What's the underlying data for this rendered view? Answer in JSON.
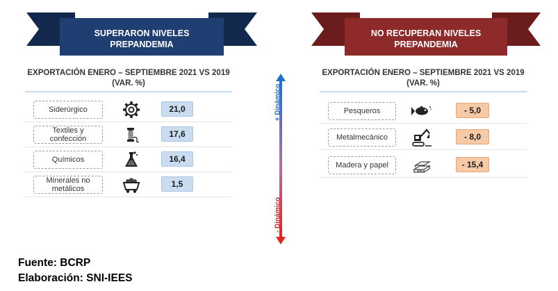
{
  "left": {
    "banner": {
      "line1": "SUPERARON NIVELES",
      "line2": "PREPANDEMIA",
      "color": "#1f3f73"
    },
    "title": {
      "line1": "EXPORTACIÓN ENERO – SEPTIEMBRE 2021 VS 2019",
      "line2": "(VAR. %)"
    },
    "items": [
      {
        "line1": "Siderúrgico",
        "line2": "",
        "value": "21,0",
        "icon": "gear-icon"
      },
      {
        "line1": "Textiles y",
        "line2": "confección",
        "value": "17,6",
        "icon": "thread-spool-icon"
      },
      {
        "line1": "Químicos",
        "line2": "",
        "value": "16,4",
        "icon": "flask-icon"
      },
      {
        "line1": "Minerales no",
        "line2": "metálicos",
        "value": "1,5",
        "icon": "mine-cart-icon"
      }
    ]
  },
  "right": {
    "banner": {
      "line1": "NO RECUPERAN NIVELES",
      "line2": "PREPANDEMIA",
      "color": "#8e2a2a"
    },
    "title": {
      "line1": "EXPORTACIÓN ENERO – SEPTIEMBRE 2021 VS 2019",
      "line2": "(VAR. %)"
    },
    "items": [
      {
        "line1": "Pesqueros",
        "value": "- 5,0",
        "icon": "fish-icon"
      },
      {
        "line1": "Metalmecánico",
        "value": "- 8,0",
        "icon": "excavator-icon"
      },
      {
        "line1": "Madera y papel",
        "value": "- 15,4",
        "icon": "lumber-icon"
      }
    ]
  },
  "axis": {
    "top_label": "+ Dinámico",
    "bottom_label": "- Dinámico",
    "top_color": "#1f6fd1",
    "bottom_color": "#e02424"
  },
  "footer": {
    "source": "Fuente: BCRP",
    "elaboration": "Elaboración: SNI-IEES"
  }
}
